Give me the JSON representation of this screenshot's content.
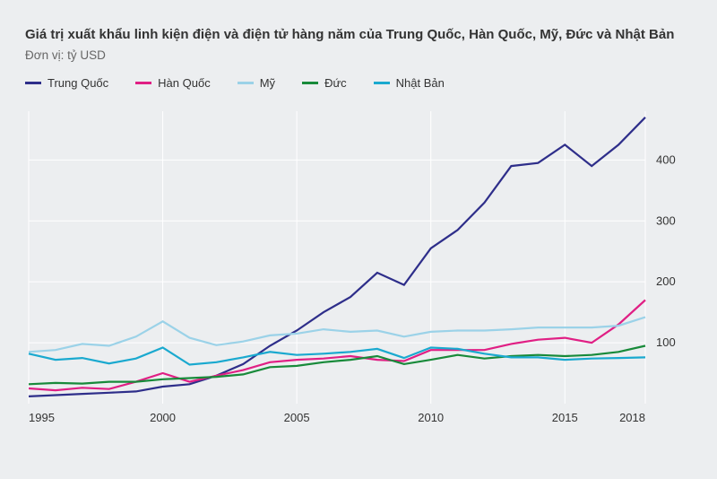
{
  "chart": {
    "type": "line",
    "title": "Giá trị xuất khẩu linh kiện điện và điện tử hàng năm của Trung Quốc, Hàn Quốc, Mỹ, Đức và Nhật Bản",
    "subtitle": "Đơn vị: tỷ USD",
    "background_color": "#eceef0",
    "grid_color": "#ffffff",
    "text_color": "#333333",
    "title_fontsize": 15,
    "label_fontsize": 13,
    "x": {
      "min": 1995,
      "max": 2018,
      "ticks": [
        1995,
        2000,
        2005,
        2010,
        2015,
        2018
      ]
    },
    "y": {
      "min": 0,
      "max": 480,
      "ticks": [
        100,
        200,
        300,
        400
      ]
    },
    "legend_position": "top",
    "line_width": 2.2,
    "series": [
      {
        "key": "china",
        "label": "Trung Quốc",
        "color": "#2e2e8a",
        "years": [
          1995,
          1996,
          1997,
          1998,
          1999,
          2000,
          2001,
          2002,
          2003,
          2004,
          2005,
          2006,
          2007,
          2008,
          2009,
          2010,
          2011,
          2012,
          2013,
          2014,
          2015,
          2016,
          2017,
          2018
        ],
        "values": [
          12,
          14,
          16,
          18,
          20,
          28,
          32,
          46,
          65,
          95,
          120,
          150,
          175,
          215,
          195,
          255,
          285,
          330,
          390,
          395,
          425,
          390,
          425,
          470
        ]
      },
      {
        "key": "korea",
        "label": "Hàn Quốc",
        "color": "#e01f84",
        "years": [
          1995,
          1996,
          1997,
          1998,
          1999,
          2000,
          2001,
          2002,
          2003,
          2004,
          2005,
          2006,
          2007,
          2008,
          2009,
          2010,
          2011,
          2012,
          2013,
          2014,
          2015,
          2016,
          2017,
          2018
        ],
        "values": [
          25,
          22,
          26,
          24,
          36,
          50,
          36,
          46,
          55,
          68,
          72,
          74,
          78,
          72,
          70,
          88,
          88,
          88,
          98,
          105,
          108,
          100,
          130,
          170
        ]
      },
      {
        "key": "us",
        "label": "Mỹ",
        "color": "#9bd2e8",
        "years": [
          1995,
          1996,
          1997,
          1998,
          1999,
          2000,
          2001,
          2002,
          2003,
          2004,
          2005,
          2006,
          2007,
          2008,
          2009,
          2010,
          2011,
          2012,
          2013,
          2014,
          2015,
          2016,
          2017,
          2018
        ],
        "values": [
          85,
          88,
          98,
          95,
          110,
          135,
          108,
          96,
          102,
          112,
          115,
          122,
          118,
          120,
          110,
          118,
          120,
          120,
          122,
          125,
          125,
          125,
          128,
          142
        ]
      },
      {
        "key": "germany",
        "label": "Đức",
        "color": "#188a3a",
        "years": [
          1995,
          1996,
          1997,
          1998,
          1999,
          2000,
          2001,
          2002,
          2003,
          2004,
          2005,
          2006,
          2007,
          2008,
          2009,
          2010,
          2011,
          2012,
          2013,
          2014,
          2015,
          2016,
          2017,
          2018
        ],
        "values": [
          32,
          34,
          33,
          36,
          36,
          40,
          42,
          44,
          48,
          60,
          62,
          68,
          72,
          78,
          65,
          72,
          80,
          74,
          78,
          80,
          78,
          80,
          85,
          95
        ]
      },
      {
        "key": "japan",
        "label": "Nhật Bản",
        "color": "#1aa9cf",
        "years": [
          1995,
          1996,
          1997,
          1998,
          1999,
          2000,
          2001,
          2002,
          2003,
          2004,
          2005,
          2006,
          2007,
          2008,
          2009,
          2010,
          2011,
          2012,
          2013,
          2014,
          2015,
          2016,
          2017,
          2018
        ],
        "values": [
          82,
          72,
          75,
          66,
          74,
          92,
          64,
          68,
          76,
          85,
          80,
          82,
          85,
          90,
          75,
          92,
          90,
          82,
          76,
          76,
          72,
          74,
          75,
          76
        ]
      }
    ]
  }
}
